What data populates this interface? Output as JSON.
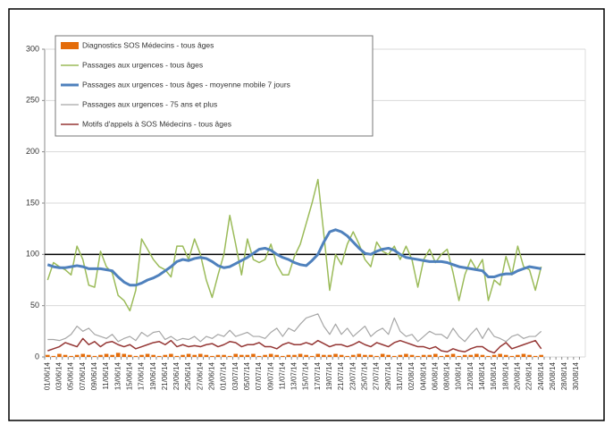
{
  "chart_data": {
    "type": "line",
    "categories": [
      "01/06/14",
      null,
      "03/06/14",
      null,
      "05/06/14",
      null,
      "07/06/14",
      null,
      "09/06/14",
      null,
      "11/06/14",
      null,
      "13/06/14",
      null,
      "15/06/14",
      null,
      "17/06/14",
      null,
      "19/06/14",
      null,
      "21/06/14",
      null,
      "23/06/14",
      null,
      "25/06/14",
      null,
      "27/06/14",
      null,
      "29/06/14",
      null,
      "01/07/14",
      null,
      "03/07/14",
      null,
      "05/07/14",
      null,
      "07/07/14",
      null,
      "09/07/14",
      null,
      "11/07/14",
      null,
      "13/07/14",
      null,
      "15/07/14",
      null,
      "17/07/14",
      null,
      "19/07/14",
      null,
      "21/07/14",
      null,
      "23/07/14",
      null,
      "25/07/14",
      null,
      "27/07/14",
      null,
      "29/07/14",
      null,
      "31/07/14",
      null,
      "02/08/14",
      null,
      "04/08/14",
      null,
      "06/08/14",
      null,
      "08/08/14",
      null,
      "10/08/14",
      null,
      "12/08/14",
      null,
      "14/08/14",
      null,
      "16/08/14",
      null,
      "18/08/14",
      null,
      "20/08/14",
      null,
      "22/08/14",
      null,
      "24/08/14",
      null,
      "26/08/14",
      null,
      "28/08/14",
      null,
      "30/08/14",
      null
    ],
    "series": [
      {
        "name": "Diagnostics SOS Médecins - tous âges",
        "type": "bar",
        "color": "#e46c0a",
        "values": [
          2,
          1,
          3,
          2,
          1,
          2,
          3,
          2,
          1,
          2,
          3,
          2,
          4,
          3,
          2,
          1,
          2,
          3,
          2,
          1,
          2,
          3,
          1,
          2,
          3,
          2,
          3,
          2,
          1,
          2,
          2,
          1,
          3,
          2,
          2,
          3,
          1,
          2,
          3,
          2,
          1,
          2,
          2,
          3,
          2,
          1,
          3,
          2,
          2,
          3,
          2,
          1,
          2,
          3,
          2,
          2,
          1,
          3,
          2,
          1,
          2,
          3,
          2,
          1,
          2,
          2,
          3,
          1,
          2,
          3,
          1,
          2,
          2,
          3,
          2,
          1,
          2,
          3,
          2,
          1,
          2,
          3,
          2,
          1,
          2,
          null,
          null,
          null,
          null,
          null,
          null,
          null
        ]
      },
      {
        "name": "Passages aux urgences - tous âges",
        "type": "line",
        "color": "#9bbb59",
        "line_width": 1.5,
        "values": [
          75,
          92,
          88,
          85,
          80,
          108,
          95,
          70,
          68,
          103,
          88,
          82,
          60,
          55,
          45,
          65,
          115,
          105,
          95,
          88,
          85,
          78,
          108,
          108,
          95,
          115,
          100,
          75,
          58,
          80,
          100,
          138,
          110,
          80,
          115,
          95,
          92,
          95,
          110,
          90,
          80,
          80,
          98,
          110,
          130,
          150,
          173,
          120,
          65,
          100,
          90,
          110,
          122,
          110,
          95,
          88,
          112,
          103,
          100,
          108,
          95,
          108,
          95,
          68,
          95,
          105,
          92,
          100,
          105,
          82,
          55,
          80,
          95,
          85,
          95,
          55,
          75,
          70,
          98,
          80,
          108,
          88,
          85,
          65,
          88,
          null,
          null,
          null,
          null,
          null,
          null,
          null
        ]
      },
      {
        "name": "Passages aux urgences - tous âges - moyenne mobile 7 jours",
        "type": "line",
        "color": "#4f81bd",
        "line_width": 3,
        "values": [
          90,
          88,
          87,
          87,
          88,
          89,
          88,
          86,
          86,
          86,
          85,
          84,
          78,
          73,
          70,
          70,
          72,
          75,
          77,
          80,
          84,
          88,
          93,
          95,
          94,
          96,
          97,
          96,
          93,
          89,
          87,
          88,
          91,
          94,
          97,
          101,
          105,
          106,
          104,
          100,
          97,
          95,
          92,
          90,
          89,
          94,
          100,
          112,
          122,
          124,
          122,
          118,
          112,
          106,
          101,
          100,
          103,
          105,
          106,
          104,
          100,
          97,
          96,
          95,
          94,
          93,
          93,
          93,
          92,
          90,
          88,
          87,
          86,
          85,
          84,
          78,
          78,
          80,
          81,
          81,
          84,
          86,
          88,
          87,
          86,
          null,
          null,
          null,
          null,
          null,
          null,
          null
        ]
      },
      {
        "name": "Passages aux urgences - 75 ans et plus",
        "type": "line",
        "color": "#a6a6a6",
        "line_width": 1.2,
        "values": [
          17,
          17,
          16,
          18,
          22,
          30,
          25,
          28,
          22,
          20,
          18,
          22,
          15,
          18,
          20,
          16,
          24,
          20,
          24,
          25,
          17,
          20,
          16,
          18,
          17,
          20,
          15,
          20,
          18,
          22,
          20,
          26,
          20,
          22,
          24,
          20,
          20,
          18,
          24,
          28,
          20,
          28,
          25,
          32,
          38,
          40,
          42,
          30,
          22,
          32,
          22,
          28,
          20,
          25,
          30,
          20,
          25,
          28,
          22,
          38,
          25,
          20,
          22,
          15,
          20,
          25,
          22,
          22,
          18,
          28,
          20,
          15,
          22,
          28,
          18,
          28,
          20,
          18,
          15,
          20,
          22,
          18,
          20,
          20,
          25,
          null,
          null,
          null,
          null,
          null,
          null,
          null
        ]
      },
      {
        "name": "Motifs d'appels à SOS Médecins - tous âges",
        "type": "line",
        "color": "#953735",
        "line_width": 1.5,
        "values": [
          6,
          8,
          10,
          14,
          12,
          10,
          18,
          12,
          15,
          10,
          14,
          15,
          12,
          10,
          12,
          8,
          10,
          12,
          14,
          15,
          12,
          16,
          10,
          12,
          10,
          11,
          10,
          12,
          13,
          10,
          12,
          15,
          14,
          10,
          12,
          12,
          14,
          10,
          10,
          8,
          12,
          14,
          12,
          12,
          14,
          12,
          16,
          13,
          10,
          12,
          12,
          10,
          12,
          15,
          12,
          10,
          14,
          12,
          10,
          14,
          16,
          14,
          12,
          10,
          10,
          8,
          10,
          6,
          5,
          8,
          6,
          5,
          8,
          10,
          10,
          6,
          4,
          10,
          14,
          8,
          10,
          12,
          14,
          16,
          8,
          null,
          null,
          null,
          null,
          null,
          null,
          null
        ]
      }
    ],
    "hline": 100,
    "ylim": [
      0,
      300
    ],
    "yticks": [
      0,
      50,
      100,
      150,
      200,
      250,
      300
    ],
    "grid": true,
    "legend": "upper left"
  }
}
